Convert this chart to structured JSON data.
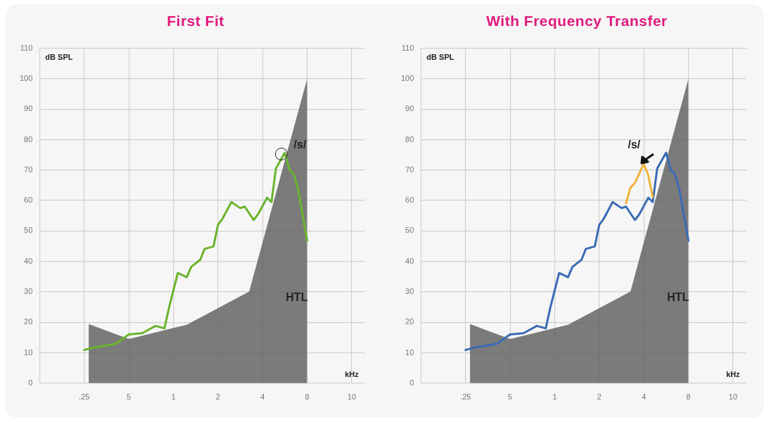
{
  "chart_data": [
    {
      "type": "line",
      "title": "First Fit",
      "xlabel": "kHz",
      "ylabel": "dB SPL",
      "categories": [
        null,
        null,
        null,
        null,
        null,
        null,
        null,
        null,
        null,
        null,
        ".25",
        null,
        null,
        null,
        null,
        null,
        null,
        null,
        null,
        null,
        "5",
        null,
        null,
        null,
        null,
        null,
        null,
        null,
        null,
        null,
        "1",
        null,
        null,
        null,
        null,
        null,
        null,
        null,
        null,
        null,
        "2",
        null,
        null,
        null,
        null,
        null,
        null,
        null,
        null,
        null,
        "4",
        null,
        null,
        null,
        null,
        null,
        null,
        null,
        null,
        null,
        "8",
        null,
        null,
        null,
        null,
        null,
        null,
        null,
        null,
        null,
        "10",
        null,
        null,
        null
      ],
      "ylim": [
        0,
        110
      ],
      "yticks": [
        0,
        10,
        20,
        30,
        40,
        50,
        60,
        70,
        80,
        90,
        100,
        110
      ],
      "grid": true,
      "series": [
        {
          "type": "area",
          "color": "#5f5f5f",
          "values": [
            null,
            null,
            null,
            null,
            null,
            null,
            null,
            null,
            null,
            null,
            null,
            19.4,
            null,
            null,
            null,
            null,
            null,
            null,
            null,
            null,
            14.5,
            null,
            null,
            null,
            null,
            null,
            null,
            null,
            null,
            null,
            null,
            null,
            null,
            19.2,
            null,
            null,
            null,
            null,
            null,
            null,
            null,
            null,
            null,
            null,
            null,
            null,
            null,
            30.1,
            null,
            null,
            null,
            null,
            null,
            null,
            null,
            null,
            null,
            null,
            null,
            null,
            100,
            null,
            null,
            null,
            null,
            null,
            null,
            null,
            null,
            null,
            null,
            null,
            null,
            null
          ]
        },
        {
          "type": "line",
          "color": "#6ab42d",
          "values": [
            null,
            null,
            null,
            null,
            null,
            null,
            null,
            null,
            null,
            null,
            10.9,
            null,
            11.7,
            null,
            null,
            null,
            null,
            12.9,
            null,
            null,
            16,
            null,
            null,
            16.4,
            null,
            null,
            18.8,
            null,
            18,
            24.7,
            null,
            36.2,
            null,
            34.8,
            38.2,
            null,
            40.5,
            44.1,
            null,
            44.9,
            52,
            54,
            null,
            59.5,
            null,
            57.5,
            58,
            null,
            53.6,
            55.5,
            null,
            60.9,
            59.5,
            70.5,
            null,
            75.7,
            70.1,
            68.6,
            63.4,
            null,
            46.8,
            null,
            null,
            null,
            null,
            null,
            null,
            null,
            null,
            null,
            null,
            null,
            null,
            null
          ]
        }
      ],
      "annotations": [
        "/s/",
        "HTL"
      ]
    },
    {
      "type": "line",
      "title": "With Frequency Transfer",
      "xlabel": "kHz",
      "ylabel": "dB SPL",
      "categories": [
        null,
        null,
        null,
        null,
        null,
        null,
        null,
        null,
        null,
        null,
        ".25",
        null,
        null,
        null,
        null,
        null,
        null,
        null,
        null,
        null,
        "5",
        null,
        null,
        null,
        null,
        null,
        null,
        null,
        null,
        null,
        "1",
        null,
        null,
        null,
        null,
        null,
        null,
        null,
        null,
        null,
        "2",
        null,
        null,
        null,
        null,
        null,
        null,
        null,
        null,
        null,
        "4",
        null,
        null,
        null,
        null,
        null,
        null,
        null,
        null,
        null,
        "8",
        null,
        null,
        null,
        null,
        null,
        null,
        null,
        null,
        null,
        "10",
        null,
        null,
        null
      ],
      "ylim": [
        0,
        110
      ],
      "yticks": [
        0,
        10,
        20,
        30,
        40,
        50,
        60,
        70,
        80,
        90,
        100,
        110
      ],
      "grid": true,
      "series": [
        {
          "type": "area",
          "color": "#5f5f5f",
          "values": [
            null,
            null,
            null,
            null,
            null,
            null,
            null,
            null,
            null,
            null,
            null,
            19.4,
            null,
            null,
            null,
            null,
            null,
            null,
            null,
            null,
            14.5,
            null,
            null,
            null,
            null,
            null,
            null,
            null,
            null,
            null,
            null,
            null,
            null,
            19.2,
            null,
            null,
            null,
            null,
            null,
            null,
            null,
            null,
            null,
            null,
            null,
            null,
            null,
            30.1,
            null,
            null,
            null,
            null,
            null,
            null,
            null,
            null,
            null,
            null,
            null,
            null,
            100,
            null,
            null,
            null,
            null,
            null,
            null,
            null,
            null,
            null,
            null,
            null,
            null,
            null
          ]
        },
        {
          "type": "line",
          "color": "#f0b43c",
          "values": [
            null,
            null,
            null,
            null,
            null,
            null,
            null,
            null,
            null,
            null,
            null,
            null,
            null,
            null,
            null,
            null,
            null,
            null,
            null,
            null,
            null,
            null,
            null,
            null,
            null,
            null,
            null,
            null,
            null,
            null,
            null,
            null,
            null,
            null,
            null,
            null,
            null,
            null,
            null,
            null,
            null,
            null,
            null,
            null,
            null,
            null,
            59.1,
            64.2,
            65.8,
            null,
            72.1,
            68.2,
            61.1,
            null,
            null,
            null,
            null,
            null,
            null,
            null,
            null,
            null,
            null,
            null,
            null,
            null,
            null,
            null,
            null,
            null,
            null,
            null,
            null,
            null
          ]
        },
        {
          "type": "line",
          "color": "#3a6cb5",
          "values": [
            null,
            null,
            null,
            null,
            null,
            null,
            null,
            null,
            null,
            null,
            10.9,
            null,
            11.7,
            null,
            null,
            null,
            null,
            12.9,
            null,
            null,
            16,
            null,
            null,
            16.4,
            null,
            null,
            18.8,
            null,
            18,
            24.7,
            null,
            36.2,
            null,
            34.8,
            38.2,
            null,
            40.5,
            44.1,
            null,
            44.9,
            52,
            54,
            null,
            59.5,
            null,
            57.5,
            58,
            null,
            53.6,
            55.5,
            null,
            60.9,
            59.5,
            70.5,
            null,
            75.7,
            70.1,
            68.6,
            63.4,
            null,
            46.8,
            null,
            null,
            null,
            null,
            null,
            null,
            null,
            null,
            null,
            null,
            null,
            null,
            null
          ]
        }
      ],
      "annotations": [
        "/s/",
        "HTL"
      ]
    }
  ]
}
